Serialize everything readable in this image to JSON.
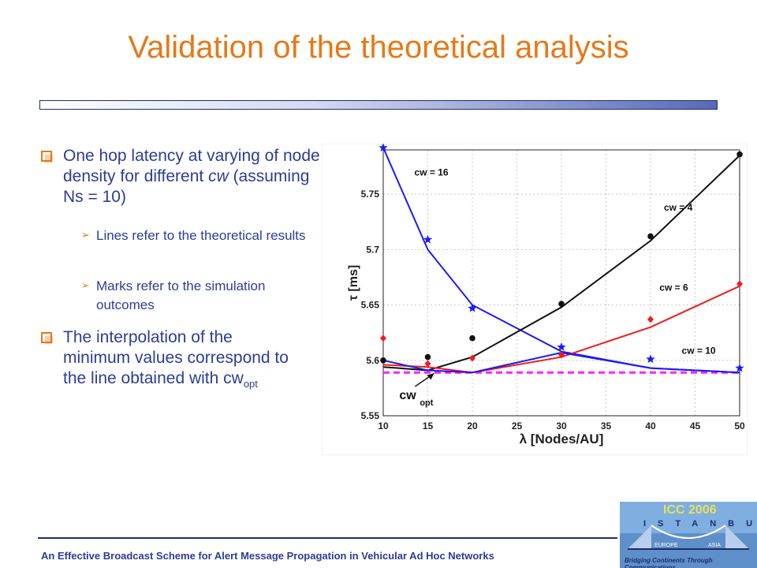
{
  "slide": {
    "title": "Validation of the theoretical analysis",
    "bullets": [
      {
        "text_a": "One hop latency at varying of node density for different ",
        "text_em": "cw",
        "text_b": " (assuming Ns = 10)"
      },
      {
        "text": "Lines refer to the theoretical results"
      },
      {
        "text": "Marks refer to the simulation outcomes"
      },
      {
        "text": "The interpolation of the minimum values correspond to the line obtained with cw",
        "sub": "opt"
      }
    ],
    "footer": "An Effective Broadcast Scheme  for Alert Message Propagation in Vehicular Ad Hoc Networks"
  },
  "logo": {
    "title": "ICC 2006",
    "city": "ISTANBUL",
    "left_label": "EUROPE",
    "right_label": "ASIA",
    "tagline": "Bridging Continents Through Communications"
  },
  "chart_data": {
    "type": "line",
    "xlabel": "λ [Nodes/AU]",
    "ylabel": "τ [ms]",
    "xlim": [
      10,
      50
    ],
    "ylim": [
      5.55,
      5.79
    ],
    "xticks": [
      10,
      15,
      20,
      25,
      30,
      35,
      40,
      45,
      50
    ],
    "yticks": [
      5.55,
      5.6,
      5.65,
      5.7,
      5.75
    ],
    "grid": true,
    "x": [
      10,
      15,
      20,
      30,
      40,
      50
    ],
    "series": [
      {
        "name": "cw = 16",
        "color": "#1a1aff",
        "marker": "star",
        "values": [
          5.792,
          5.7,
          5.65,
          5.608,
          5.593,
          5.589
        ],
        "marks": [
          5.792,
          5.709,
          5.647,
          5.612,
          5.601,
          5.593
        ]
      },
      {
        "name": "cw = 4",
        "color": "#111111",
        "marker": "circle",
        "values": [
          5.594,
          5.591,
          5.603,
          5.648,
          5.708,
          5.785
        ],
        "marks": [
          5.6,
          5.603,
          5.62,
          5.651,
          5.712,
          5.786
        ]
      },
      {
        "name": "cw = 6",
        "color": "#ee1c1c",
        "marker": "diamond",
        "values": [
          5.596,
          5.594,
          5.589,
          5.603,
          5.63,
          5.667
        ],
        "marks": [
          5.62,
          5.597,
          5.602,
          5.605,
          5.637,
          5.669
        ]
      },
      {
        "name": "cw = 10",
        "color": "#1a1aff",
        "marker": "none",
        "values": [
          5.6,
          5.591,
          5.589,
          5.607,
          5.593,
          5.589
        ],
        "marks": []
      }
    ],
    "reference_line": {
      "label_main": "cw",
      "label_sub": "opt",
      "y": 5.589,
      "color": "#ff22ff",
      "style": "dashed"
    },
    "annotations": [
      {
        "text": "cw = 16",
        "x": 13.5,
        "y": 5.767
      },
      {
        "text": "cw = 4",
        "x": 41.5,
        "y": 5.735
      },
      {
        "text": "cw = 6",
        "x": 41.0,
        "y": 5.663
      },
      {
        "text": "cw = 10",
        "x": 43.5,
        "y": 5.606
      }
    ]
  }
}
